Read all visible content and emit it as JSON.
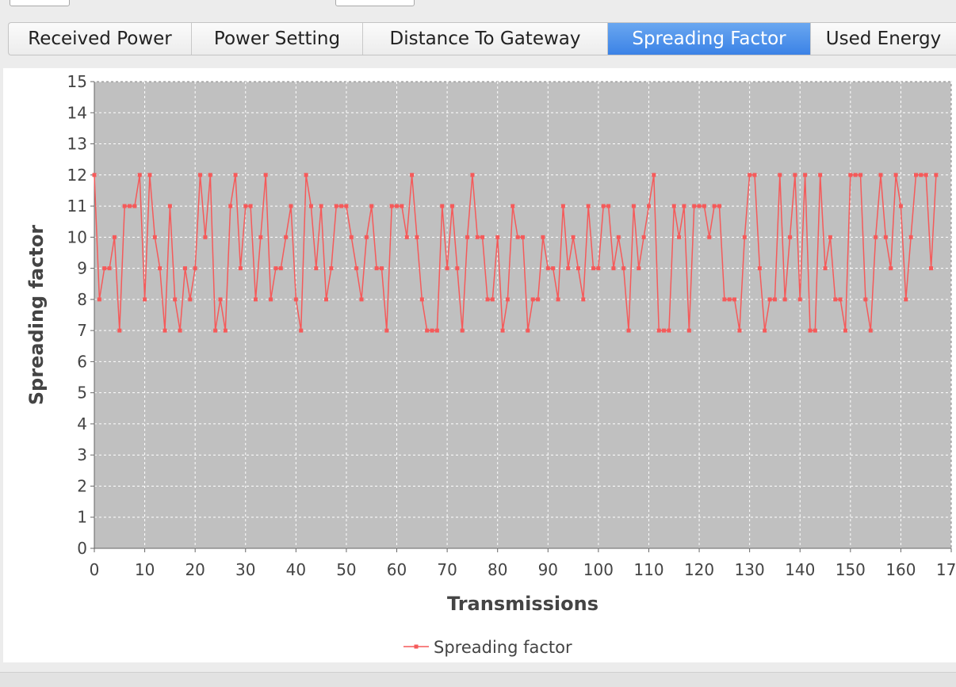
{
  "tabs": [
    {
      "label": "Received Power",
      "selected": false
    },
    {
      "label": "Power Setting",
      "selected": false
    },
    {
      "label": "Distance To Gateway",
      "selected": false
    },
    {
      "label": "Spreading Factor",
      "selected": true
    },
    {
      "label": "Used Energy",
      "selected": false
    }
  ],
  "chart_data": {
    "type": "line",
    "x_label": "Transmissions",
    "y_label": "Spreading factor",
    "xlim": [
      0,
      170
    ],
    "xticks": [
      0,
      10,
      20,
      30,
      40,
      50,
      60,
      70,
      80,
      90,
      100,
      110,
      120,
      130,
      140,
      150,
      160,
      170
    ],
    "ylim": [
      0,
      15
    ],
    "yticks": [
      0,
      1,
      2,
      3,
      4,
      5,
      6,
      7,
      8,
      9,
      10,
      11,
      12,
      13,
      14,
      15
    ],
    "grid": true,
    "legend": "bottom",
    "series": [
      {
        "name": "Spreading factor",
        "color": "#f55a5a",
        "values": [
          12,
          8,
          9,
          9,
          10,
          7,
          11,
          11,
          11,
          12,
          8,
          12,
          10,
          9,
          7,
          11,
          8,
          7,
          9,
          8,
          9,
          12,
          10,
          12,
          7,
          8,
          7,
          11,
          12,
          9,
          11,
          11,
          8,
          10,
          12,
          8,
          9,
          9,
          10,
          11,
          8,
          7,
          12,
          11,
          9,
          11,
          8,
          9,
          11,
          11,
          11,
          10,
          9,
          8,
          10,
          11,
          9,
          9,
          7,
          11,
          11,
          11,
          10,
          12,
          10,
          8,
          7,
          7,
          7,
          11,
          9,
          11,
          9,
          7,
          10,
          12,
          10,
          10,
          8,
          8,
          10,
          7,
          8,
          11,
          10,
          10,
          7,
          8,
          8,
          10,
          9,
          9,
          8,
          11,
          9,
          10,
          9,
          8,
          11,
          9,
          9,
          11,
          11,
          9,
          10,
          9,
          7,
          11,
          9,
          10,
          11,
          12,
          7,
          7,
          7,
          11,
          10,
          11,
          7,
          11,
          11,
          11,
          10,
          11,
          11,
          8,
          8,
          8,
          7,
          10,
          12,
          12,
          9,
          7,
          8,
          8,
          12,
          8,
          10,
          12,
          8,
          12,
          7,
          7,
          12,
          9,
          10,
          8,
          8,
          7,
          12,
          12,
          12,
          8,
          7,
          10,
          12,
          10,
          9,
          12,
          11,
          8,
          10,
          12,
          12,
          12,
          9,
          12
        ]
      }
    ]
  }
}
